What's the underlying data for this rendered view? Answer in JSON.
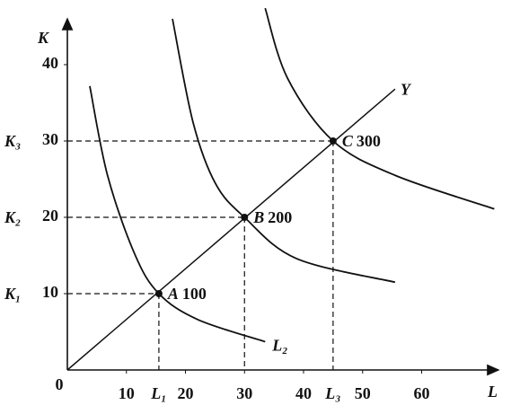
{
  "chart_data": {
    "type": "isoquant",
    "x_label": "L",
    "y_label": "K",
    "origin_label": "0",
    "xlim": [
      0,
      73
    ],
    "ylim": [
      0,
      46
    ],
    "xticks": [
      10,
      20,
      30,
      40,
      50,
      60
    ],
    "yticks": [
      10,
      20,
      30,
      40
    ],
    "points": [
      {
        "name": "A",
        "x": 15.5,
        "y": 10,
        "output": 100,
        "x_label": "L₁",
        "y_label": "K₁"
      },
      {
        "name": "B",
        "x": 30,
        "y": 20,
        "output": 200,
        "y_label": "K₂"
      },
      {
        "name": "C",
        "x": 45,
        "y": 30,
        "output": 300,
        "x_label": "L₃",
        "y_label": "K₃"
      }
    ],
    "isoquants": [
      {
        "x": [
          3.8,
          6.8,
          11.4,
          15.5,
          22.1,
          33.5
        ],
        "y": [
          37.2,
          25.5,
          15.2,
          10,
          6.6,
          3.7
        ]
      },
      {
        "x": [
          17.8,
          21.3,
          25.1,
          30,
          38.8,
          55.5
        ],
        "y": [
          46,
          32.4,
          24.4,
          20,
          14.6,
          11.5
        ]
      },
      {
        "x": [
          33.5,
          37.3,
          45,
          55.5,
          72.3
        ],
        "y": [
          47.4,
          38.2,
          30,
          25.5,
          21.1
        ]
      }
    ],
    "isoquant_note": "L₂",
    "expansion_path": {
      "name": "Y",
      "x": [
        0,
        55.5
      ],
      "y": [
        0,
        36.8
      ]
    }
  }
}
